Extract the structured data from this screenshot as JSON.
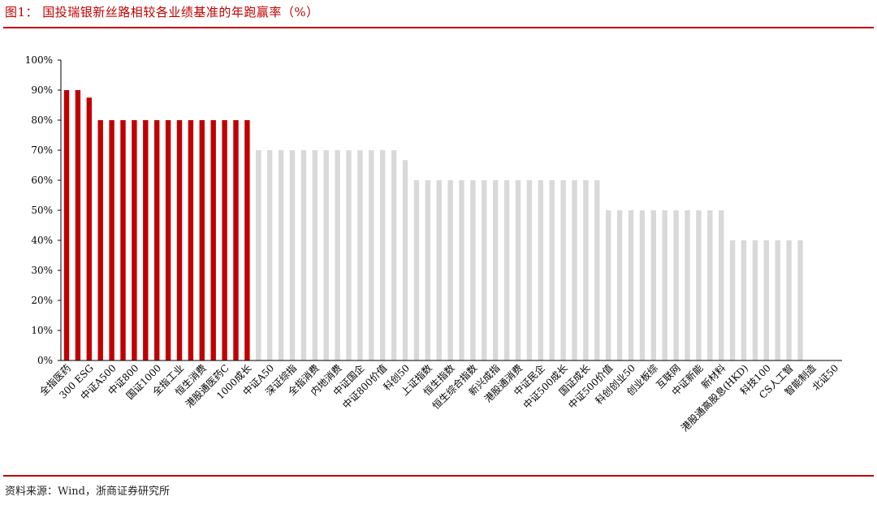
{
  "figure": {
    "title": "图1：  国投瑞银新丝路相较各业绩基准的年跑赢率（%）",
    "source": "资料来源：Wind，浙商证券研究所"
  },
  "colors": {
    "accent": "#c00000",
    "highlight_bar": "#c00000",
    "other_bar": "#d9d9d9",
    "axis": "#000000"
  },
  "chart_data": {
    "type": "bar",
    "title": "",
    "xlabel": "",
    "ylabel": "",
    "ylim": [
      0,
      100
    ],
    "yticks": [
      0,
      10,
      20,
      30,
      40,
      50,
      60,
      70,
      80,
      90,
      100
    ],
    "ytick_suffix": "%",
    "grid": false,
    "legend": "none",
    "highlight_count": 17,
    "labeled_categories": [
      "全指医药",
      "300 ESG",
      "中证A500",
      "中证800",
      "国证1000",
      "全指工业",
      "恒生消费",
      "港股通医药C",
      "1000成长",
      "中证A50",
      "深证综指",
      "全指消费",
      "内地消费",
      "中证国企",
      "中证800价值",
      "科创50",
      "上证指数",
      "恒生指数",
      "恒生综合指数",
      "新兴成指",
      "港股通消费",
      "中证民企",
      "中证500成长",
      "国证成长",
      "中证500价值",
      "科创创业50",
      "创业板综",
      "互联网",
      "中证新能",
      "新材料",
      "港股通高股息(HKD)",
      "科技100",
      "CS人工智",
      "智能制造",
      "北证50"
    ],
    "values": [
      90,
      90,
      87.5,
      80,
      80,
      80,
      80,
      80,
      80,
      80,
      80,
      80,
      80,
      80,
      80,
      80,
      80,
      70,
      70,
      70,
      70,
      70,
      70,
      70,
      70,
      70,
      70,
      70,
      70,
      70,
      66.7,
      60,
      60,
      60,
      60,
      60,
      60,
      60,
      60,
      60,
      60,
      60,
      60,
      60,
      60,
      60,
      60,
      60,
      50,
      50,
      50,
      50,
      50,
      50,
      50,
      50,
      50,
      50,
      50,
      40,
      40,
      40,
      40,
      40,
      40,
      40
    ]
  }
}
